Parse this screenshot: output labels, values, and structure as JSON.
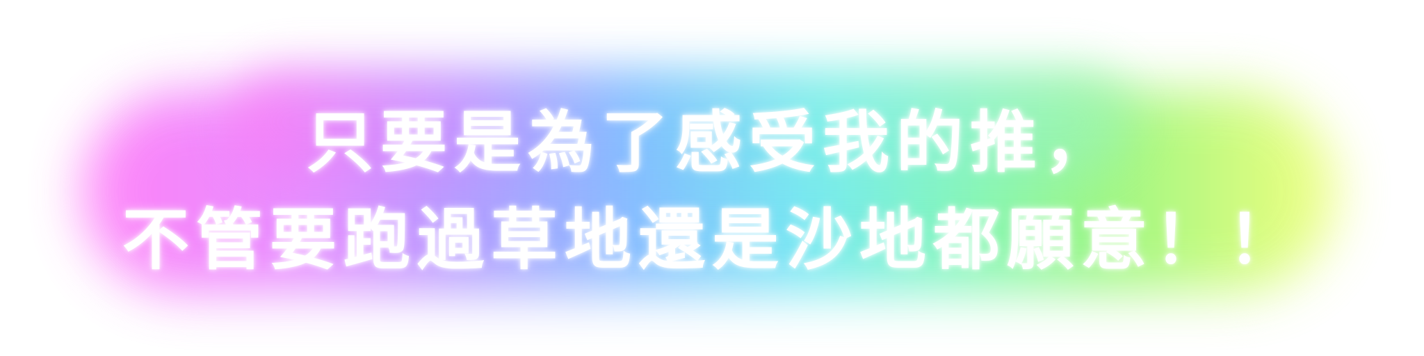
{
  "banner": {
    "line1": "只要是為了感受我的推，",
    "line2": "不管要跑過草地還是沙地都願意！！"
  },
  "colors": {
    "text": "#ffffff",
    "glow_gradient": [
      "#ff6ef7",
      "#a98bff",
      "#6fb6ff",
      "#5fe6f0",
      "#8ff56e",
      "#f0ff6a"
    ]
  }
}
